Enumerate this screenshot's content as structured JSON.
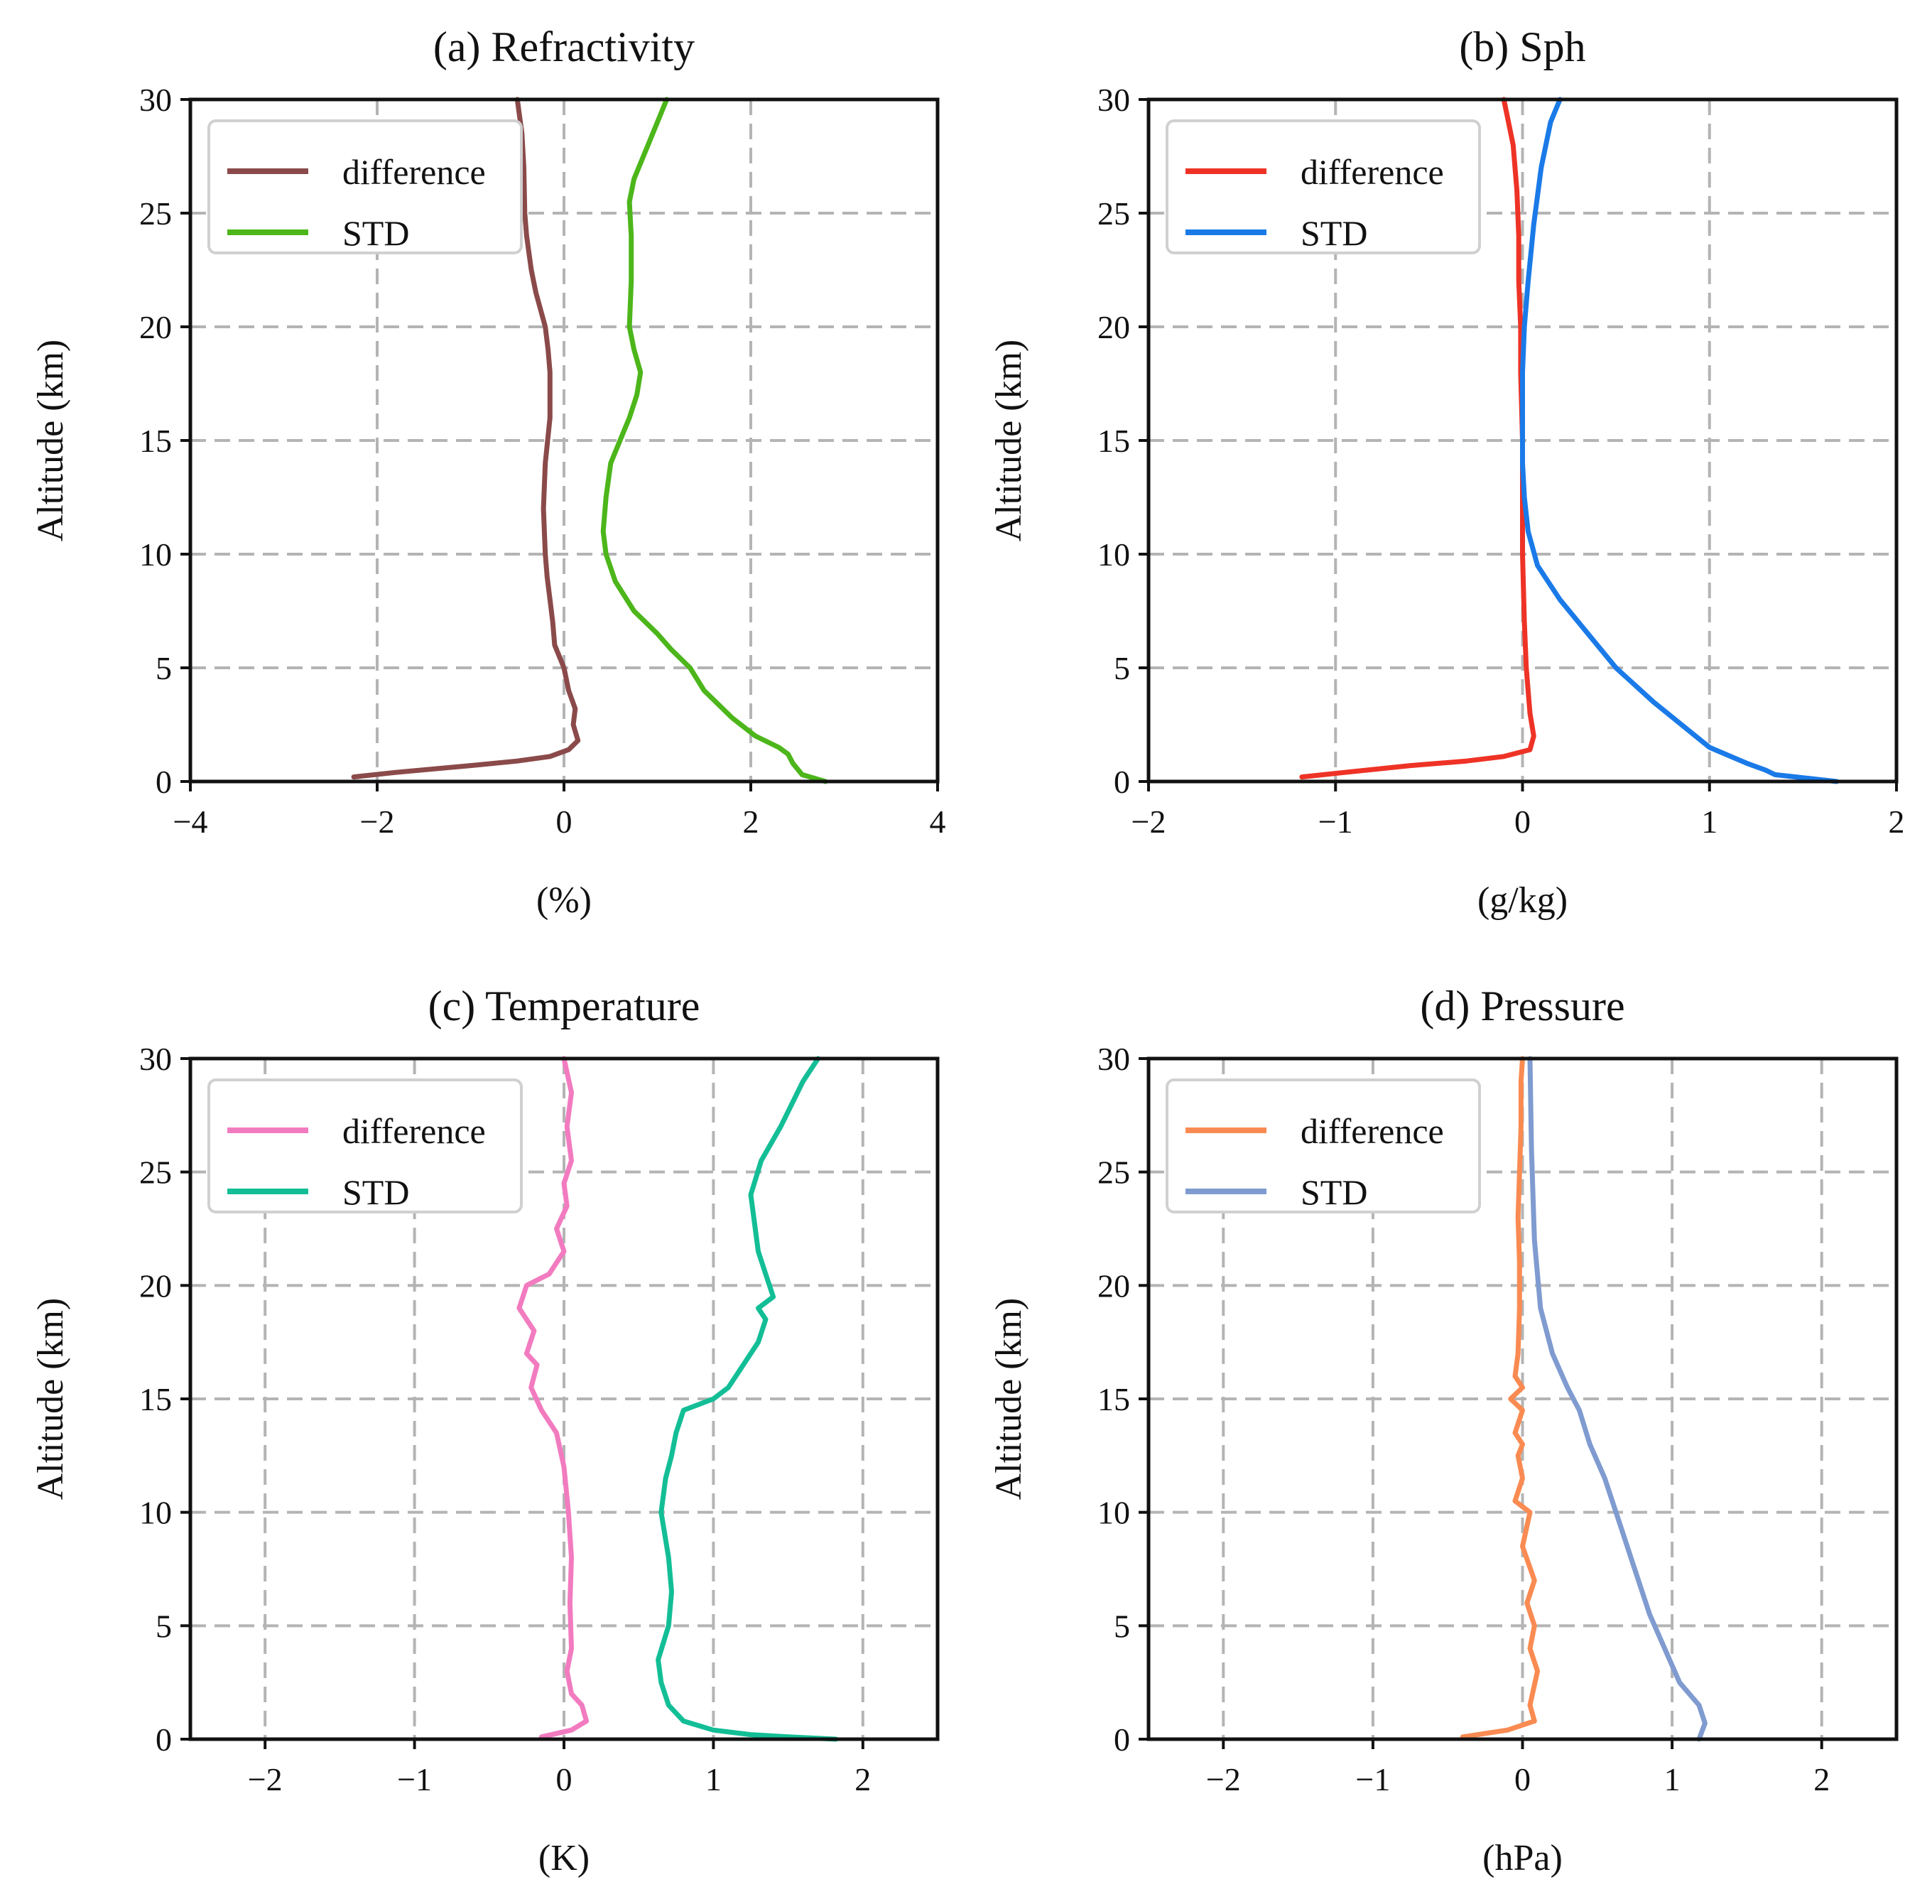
{
  "figure": {
    "ylabel": "Altitude (km)"
  },
  "chart_data": [
    {
      "type": "line",
      "title": "(a) Refractivity",
      "xlabel": "(%)",
      "ylabel": "Altitude (km)",
      "xlim": [
        -4,
        4
      ],
      "ylim": [
        0,
        30
      ],
      "xticks": [
        -4,
        -2,
        0,
        2,
        4
      ],
      "xtick_labels": [
        "−4",
        "−2",
        "0",
        "2",
        "4"
      ],
      "yticks": [
        0,
        5,
        10,
        15,
        20,
        25,
        30
      ],
      "ytick_labels": [
        "0",
        "5",
        "10",
        "15",
        "20",
        "25",
        "30"
      ],
      "grid": true,
      "legend_position": "top-left",
      "series": [
        {
          "name": "difference",
          "color": "#8B4A4A",
          "x": [
            -2.25,
            -1.8,
            -1.0,
            -0.5,
            -0.15,
            0.05,
            0.15,
            0.1,
            0.12,
            0.05,
            0.0,
            -0.1,
            -0.12,
            -0.15,
            -0.18,
            -0.2,
            -0.22,
            -0.2,
            -0.15,
            -0.15,
            -0.17,
            -0.2,
            -0.3,
            -0.35,
            -0.4,
            -0.42,
            -0.43,
            -0.45,
            -0.5
          ],
          "y": [
            0.2,
            0.4,
            0.7,
            0.9,
            1.1,
            1.4,
            1.8,
            2.5,
            3.2,
            4.0,
            5.0,
            6.0,
            7.0,
            8.0,
            9.0,
            10.0,
            12.0,
            14.0,
            16.0,
            18.0,
            19.0,
            20.0,
            21.5,
            22.5,
            24.0,
            25.0,
            27.0,
            28.5,
            30.0
          ]
        },
        {
          "name": "STD",
          "color": "#4CB61A",
          "x": [
            2.8,
            2.55,
            2.45,
            2.4,
            2.3,
            2.05,
            1.8,
            1.5,
            1.35,
            1.15,
            1.0,
            0.75,
            0.55,
            0.45,
            0.42,
            0.45,
            0.5,
            0.6,
            0.7,
            0.78,
            0.82,
            0.75,
            0.7,
            0.72,
            0.72,
            0.7,
            0.75,
            0.9,
            1.1
          ],
          "y": [
            0.0,
            0.3,
            0.8,
            1.2,
            1.5,
            2.0,
            2.8,
            4.0,
            5.0,
            5.8,
            6.5,
            7.5,
            8.8,
            10.0,
            11.0,
            12.5,
            14.0,
            15.0,
            16.0,
            17.0,
            18.0,
            19.0,
            20.0,
            22.0,
            24.0,
            25.5,
            26.5,
            28.0,
            30.0
          ]
        }
      ]
    },
    {
      "type": "line",
      "title": "(b) Sph",
      "xlabel": "(g/kg)",
      "ylabel": "Altitude (km)",
      "xlim": [
        -2,
        2
      ],
      "ylim": [
        0,
        30
      ],
      "xticks": [
        -2,
        -1,
        0,
        1,
        2
      ],
      "xtick_labels": [
        "−2",
        "−1",
        "0",
        "1",
        "2"
      ],
      "yticks": [
        0,
        5,
        10,
        15,
        20,
        25,
        30
      ],
      "ytick_labels": [
        "0",
        "5",
        "10",
        "15",
        "20",
        "25",
        "30"
      ],
      "grid": true,
      "legend_position": "top-left",
      "series": [
        {
          "name": "difference",
          "color": "#EE3326",
          "x": [
            -1.18,
            -0.95,
            -0.6,
            -0.3,
            -0.1,
            0.04,
            0.06,
            0.04,
            0.03,
            0.02,
            0.01,
            0.0,
            0.0,
            0.0,
            -0.01,
            -0.01,
            -0.02,
            -0.02,
            -0.03,
            -0.05,
            -0.1
          ],
          "y": [
            0.2,
            0.4,
            0.7,
            0.9,
            1.1,
            1.4,
            2.0,
            3.0,
            4.0,
            5.0,
            7.0,
            10.0,
            12.5,
            15.0,
            18.0,
            20.0,
            22.0,
            24.0,
            26.0,
            28.0,
            30.0
          ]
        },
        {
          "name": "STD",
          "color": "#1A7AE8",
          "x": [
            1.68,
            1.35,
            1.3,
            1.2,
            1.0,
            0.85,
            0.7,
            0.5,
            0.35,
            0.2,
            0.08,
            0.03,
            0.01,
            0.0,
            0.0,
            0.0,
            0.01,
            0.03,
            0.06,
            0.1,
            0.15,
            0.2
          ],
          "y": [
            0.0,
            0.3,
            0.5,
            0.8,
            1.5,
            2.5,
            3.5,
            5.0,
            6.5,
            8.0,
            9.5,
            11.0,
            12.5,
            14.0,
            16.0,
            18.0,
            20.0,
            22.0,
            24.5,
            27.0,
            29.0,
            30.0
          ]
        }
      ]
    },
    {
      "type": "line",
      "title": "(c) Temperature",
      "xlabel": "(K)",
      "ylabel": "Altitude (km)",
      "xlim": [
        -2.5,
        2.5
      ],
      "ylim": [
        0,
        30
      ],
      "xticks": [
        -2,
        -1,
        0,
        1,
        2
      ],
      "xtick_labels": [
        "−2",
        "−1",
        "0",
        "1",
        "2"
      ],
      "yticks": [
        0,
        5,
        10,
        15,
        20,
        25,
        30
      ],
      "ytick_labels": [
        "0",
        "5",
        "10",
        "15",
        "20",
        "25",
        "30"
      ],
      "grid": true,
      "legend_position": "top-left",
      "series": [
        {
          "name": "difference",
          "color": "#F27BC0",
          "x": [
            -0.15,
            0.05,
            0.15,
            0.12,
            0.05,
            0.02,
            0.05,
            0.04,
            0.05,
            0.03,
            0.0,
            -0.05,
            -0.15,
            -0.22,
            -0.18,
            -0.25,
            -0.2,
            -0.3,
            -0.25,
            -0.1,
            0.0,
            -0.05,
            0.02,
            0.0,
            0.05,
            0.02,
            0.05,
            0.0
          ],
          "y": [
            0.1,
            0.4,
            0.8,
            1.5,
            2.0,
            3.0,
            4.0,
            6.0,
            8.0,
            10.0,
            12.0,
            13.5,
            14.5,
            15.5,
            16.5,
            17.0,
            18.0,
            19.0,
            20.0,
            20.5,
            21.5,
            22.5,
            23.5,
            24.5,
            25.5,
            27.0,
            28.5,
            30.0
          ]
        },
        {
          "name": "STD",
          "color": "#13BE96",
          "x": [
            1.82,
            1.5,
            1.25,
            1.0,
            0.8,
            0.7,
            0.65,
            0.63,
            0.7,
            0.72,
            0.7,
            0.65,
            0.68,
            0.72,
            0.75,
            0.8,
            1.0,
            1.1,
            1.2,
            1.3,
            1.35,
            1.3,
            1.4,
            1.35,
            1.3,
            1.28,
            1.25,
            1.32,
            1.45,
            1.6,
            1.7
          ],
          "y": [
            0.0,
            0.1,
            0.2,
            0.4,
            0.8,
            1.5,
            2.5,
            3.5,
            5.0,
            6.5,
            8.0,
            10.0,
            11.5,
            12.5,
            13.5,
            14.5,
            15.0,
            15.5,
            16.5,
            17.5,
            18.5,
            19.0,
            19.5,
            20.5,
            21.5,
            22.5,
            24.0,
            25.5,
            27.0,
            29.0,
            30.0
          ]
        }
      ]
    },
    {
      "type": "line",
      "title": "(d) Pressure",
      "xlabel": "(hPa)",
      "ylabel": "Altitude (km)",
      "xlim": [
        -2.5,
        2.5
      ],
      "ylim": [
        0,
        30
      ],
      "xticks": [
        -2,
        -1,
        0,
        1,
        2
      ],
      "xtick_labels": [
        "−2",
        "−1",
        "0",
        "1",
        "2"
      ],
      "yticks": [
        0,
        5,
        10,
        15,
        20,
        25,
        30
      ],
      "ytick_labels": [
        "0",
        "5",
        "10",
        "15",
        "20",
        "25",
        "30"
      ],
      "grid": true,
      "legend_position": "top-left",
      "series": [
        {
          "name": "difference",
          "color": "#F98B52",
          "x": [
            -0.4,
            -0.1,
            0.08,
            0.05,
            0.1,
            0.05,
            0.08,
            0.03,
            0.08,
            0.0,
            0.05,
            -0.05,
            0.0,
            -0.03,
            0.0,
            -0.05,
            0.0,
            -0.08,
            0.0,
            -0.05,
            -0.03,
            -0.02,
            -0.02,
            -0.03,
            -0.02,
            -0.01,
            -0.01,
            0.0
          ],
          "y": [
            0.1,
            0.4,
            0.8,
            1.5,
            3.0,
            4.0,
            5.0,
            6.0,
            7.0,
            8.5,
            10.0,
            10.5,
            11.5,
            12.5,
            13.0,
            13.5,
            14.5,
            15.0,
            15.5,
            16.0,
            17.0,
            19.0,
            21.0,
            23.0,
            25.0,
            27.0,
            29.0,
            30.0
          ]
        },
        {
          "name": "STD",
          "color": "#7F9BD0",
          "x": [
            1.18,
            1.22,
            1.18,
            1.05,
            0.95,
            0.85,
            0.75,
            0.65,
            0.55,
            0.45,
            0.38,
            0.3,
            0.2,
            0.12,
            0.08,
            0.06,
            0.05
          ],
          "y": [
            0.0,
            0.7,
            1.5,
            2.5,
            4.0,
            5.5,
            7.5,
            9.5,
            11.5,
            13.0,
            14.5,
            15.5,
            17.0,
            19.0,
            22.0,
            26.0,
            30.0
          ]
        }
      ]
    }
  ]
}
